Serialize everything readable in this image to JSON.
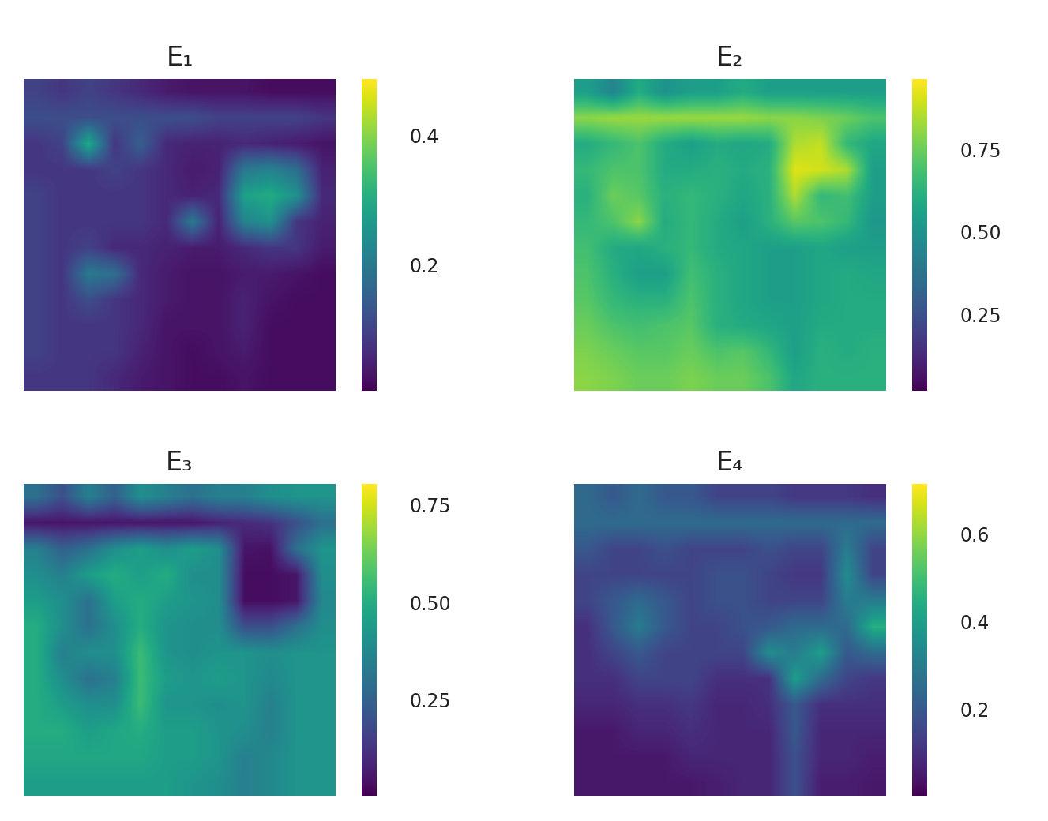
{
  "chart_data": [
    {
      "type": "heatmap",
      "title": "E₁",
      "tick_labels": false,
      "colorbar_range": [
        0.004,
        0.488
      ],
      "colorbar_ticks": [
        0.2,
        0.4
      ],
      "cells": [
        [
          0.1,
          0.08,
          0.1,
          0.08,
          0.06,
          0.04,
          0.03,
          0.03,
          0.03,
          0.02,
          0.02,
          0.02
        ],
        [
          0.12,
          0.12,
          0.12,
          0.12,
          0.12,
          0.12,
          0.12,
          0.1,
          0.1,
          0.1,
          0.1,
          0.08
        ],
        [
          0.08,
          0.1,
          0.3,
          0.08,
          0.15,
          0.06,
          0.05,
          0.05,
          0.06,
          0.05,
          0.04,
          0.03
        ],
        [
          0.08,
          0.08,
          0.08,
          0.1,
          0.08,
          0.06,
          0.04,
          0.05,
          0.2,
          0.22,
          0.18,
          0.05
        ],
        [
          0.1,
          0.08,
          0.08,
          0.08,
          0.08,
          0.06,
          0.05,
          0.06,
          0.28,
          0.3,
          0.25,
          0.06
        ],
        [
          0.1,
          0.08,
          0.08,
          0.08,
          0.08,
          0.06,
          0.2,
          0.05,
          0.22,
          0.25,
          0.08,
          0.05
        ],
        [
          0.1,
          0.08,
          0.1,
          0.06,
          0.06,
          0.05,
          0.04,
          0.04,
          0.06,
          0.08,
          0.08,
          0.04
        ],
        [
          0.1,
          0.08,
          0.2,
          0.18,
          0.06,
          0.04,
          0.03,
          0.03,
          0.04,
          0.04,
          0.03,
          0.02
        ],
        [
          0.1,
          0.08,
          0.12,
          0.08,
          0.06,
          0.04,
          0.03,
          0.03,
          0.05,
          0.03,
          0.02,
          0.02
        ],
        [
          0.1,
          0.08,
          0.08,
          0.08,
          0.06,
          0.03,
          0.03,
          0.03,
          0.05,
          0.02,
          0.02,
          0.02
        ],
        [
          0.1,
          0.08,
          0.08,
          0.08,
          0.05,
          0.03,
          0.02,
          0.03,
          0.04,
          0.02,
          0.02,
          0.02
        ],
        [
          0.08,
          0.08,
          0.08,
          0.06,
          0.04,
          0.03,
          0.02,
          0.02,
          0.03,
          0.02,
          0.02,
          0.02
        ]
      ]
    },
    {
      "type": "heatmap",
      "title": "E₂",
      "tick_labels": false,
      "colorbar_range": [
        0.017,
        0.966
      ],
      "colorbar_ticks": [
        0.25,
        {
          "value": 0.5,
          "label": "0.50"
        },
        0.75
      ],
      "cells": [
        [
          0.55,
          0.45,
          0.6,
          0.5,
          0.55,
          0.55,
          0.6,
          0.55,
          0.55,
          0.55,
          0.55,
          0.55
        ],
        [
          0.8,
          0.82,
          0.82,
          0.82,
          0.82,
          0.82,
          0.82,
          0.8,
          0.8,
          0.78,
          0.75,
          0.7
        ],
        [
          0.6,
          0.65,
          0.7,
          0.6,
          0.55,
          0.6,
          0.58,
          0.6,
          0.85,
          0.88,
          0.65,
          0.58
        ],
        [
          0.65,
          0.7,
          0.7,
          0.6,
          0.6,
          0.62,
          0.6,
          0.62,
          0.92,
          0.9,
          0.85,
          0.55
        ],
        [
          0.62,
          0.75,
          0.72,
          0.62,
          0.65,
          0.62,
          0.58,
          0.62,
          0.85,
          0.65,
          0.68,
          0.55
        ],
        [
          0.65,
          0.7,
          0.8,
          0.6,
          0.65,
          0.6,
          0.55,
          0.62,
          0.72,
          0.7,
          0.65,
          0.52
        ],
        [
          0.68,
          0.6,
          0.58,
          0.62,
          0.65,
          0.6,
          0.58,
          0.55,
          0.55,
          0.58,
          0.55,
          0.55
        ],
        [
          0.7,
          0.62,
          0.55,
          0.55,
          0.68,
          0.62,
          0.58,
          0.55,
          0.55,
          0.58,
          0.6,
          0.58
        ],
        [
          0.72,
          0.65,
          0.62,
          0.62,
          0.7,
          0.62,
          0.58,
          0.55,
          0.55,
          0.58,
          0.6,
          0.6
        ],
        [
          0.75,
          0.7,
          0.68,
          0.7,
          0.72,
          0.62,
          0.6,
          0.58,
          0.55,
          0.6,
          0.6,
          0.6
        ],
        [
          0.78,
          0.75,
          0.72,
          0.72,
          0.75,
          0.7,
          0.72,
          0.65,
          0.55,
          0.62,
          0.6,
          0.62
        ],
        [
          0.8,
          0.78,
          0.75,
          0.75,
          0.78,
          0.75,
          0.75,
          0.7,
          0.58,
          0.62,
          0.62,
          0.62
        ]
      ]
    },
    {
      "type": "heatmap",
      "title": "E₃",
      "tick_labels": false,
      "colorbar_range": [
        0.004,
        0.804
      ],
      "colorbar_ticks": [
        0.25,
        {
          "value": 0.5,
          "label": "0.50"
        },
        0.75
      ],
      "cells": [
        [
          0.3,
          0.2,
          0.35,
          0.25,
          0.4,
          0.35,
          0.3,
          0.35,
          0.35,
          0.4,
          0.42,
          0.42
        ],
        [
          0.05,
          0.05,
          0.05,
          0.05,
          0.05,
          0.05,
          0.05,
          0.08,
          0.1,
          0.12,
          0.2,
          0.3
        ],
        [
          0.35,
          0.25,
          0.3,
          0.4,
          0.45,
          0.4,
          0.45,
          0.4,
          0.05,
          0.04,
          0.3,
          0.42
        ],
        [
          0.4,
          0.35,
          0.45,
          0.5,
          0.45,
          0.5,
          0.4,
          0.4,
          0.03,
          0.03,
          0.05,
          0.4
        ],
        [
          0.45,
          0.4,
          0.3,
          0.45,
          0.5,
          0.45,
          0.42,
          0.4,
          0.03,
          0.03,
          0.05,
          0.38
        ],
        [
          0.5,
          0.4,
          0.3,
          0.4,
          0.5,
          0.42,
          0.4,
          0.4,
          0.2,
          0.2,
          0.3,
          0.4
        ],
        [
          0.5,
          0.35,
          0.4,
          0.4,
          0.55,
          0.42,
          0.4,
          0.42,
          0.42,
          0.4,
          0.42,
          0.42
        ],
        [
          0.5,
          0.4,
          0.3,
          0.35,
          0.55,
          0.45,
          0.42,
          0.45,
          0.42,
          0.38,
          0.42,
          0.42
        ],
        [
          0.5,
          0.45,
          0.4,
          0.4,
          0.55,
          0.42,
          0.42,
          0.4,
          0.42,
          0.35,
          0.42,
          0.42
        ],
        [
          0.5,
          0.5,
          0.45,
          0.48,
          0.5,
          0.45,
          0.45,
          0.42,
          0.4,
          0.35,
          0.42,
          0.42
        ],
        [
          0.48,
          0.48,
          0.48,
          0.48,
          0.48,
          0.45,
          0.45,
          0.42,
          0.35,
          0.38,
          0.42,
          0.42
        ],
        [
          0.45,
          0.45,
          0.45,
          0.45,
          0.45,
          0.45,
          0.42,
          0.4,
          0.35,
          0.38,
          0.42,
          0.42
        ]
      ]
    },
    {
      "type": "heatmap",
      "title": "E₄",
      "tick_labels": false,
      "colorbar_range": [
        0.003,
        0.715
      ],
      "colorbar_ticks": [
        0.2,
        0.4,
        0.6
      ],
      "cells": [
        [
          0.25,
          0.2,
          0.25,
          0.2,
          0.2,
          0.15,
          0.15,
          0.15,
          0.12,
          0.12,
          0.12,
          0.1
        ],
        [
          0.25,
          0.25,
          0.25,
          0.25,
          0.25,
          0.25,
          0.25,
          0.25,
          0.25,
          0.25,
          0.25,
          0.25
        ],
        [
          0.2,
          0.15,
          0.15,
          0.18,
          0.15,
          0.15,
          0.15,
          0.18,
          0.15,
          0.15,
          0.3,
          0.15
        ],
        [
          0.15,
          0.15,
          0.15,
          0.15,
          0.15,
          0.18,
          0.18,
          0.15,
          0.12,
          0.12,
          0.35,
          0.15
        ],
        [
          0.15,
          0.2,
          0.25,
          0.2,
          0.15,
          0.18,
          0.18,
          0.15,
          0.15,
          0.15,
          0.3,
          0.3
        ],
        [
          0.1,
          0.2,
          0.3,
          0.2,
          0.15,
          0.15,
          0.18,
          0.2,
          0.25,
          0.25,
          0.25,
          0.45
        ],
        [
          0.1,
          0.15,
          0.2,
          0.15,
          0.15,
          0.15,
          0.15,
          0.35,
          0.3,
          0.4,
          0.2,
          0.25
        ],
        [
          0.1,
          0.1,
          0.15,
          0.15,
          0.15,
          0.1,
          0.1,
          0.1,
          0.4,
          0.25,
          0.15,
          0.12
        ],
        [
          0.08,
          0.08,
          0.1,
          0.1,
          0.12,
          0.08,
          0.08,
          0.1,
          0.2,
          0.1,
          0.1,
          0.1
        ],
        [
          0.05,
          0.05,
          0.08,
          0.08,
          0.1,
          0.08,
          0.08,
          0.08,
          0.2,
          0.08,
          0.08,
          0.08
        ],
        [
          0.05,
          0.05,
          0.05,
          0.05,
          0.08,
          0.08,
          0.08,
          0.08,
          0.18,
          0.08,
          0.08,
          0.06
        ],
        [
          0.05,
          0.05,
          0.05,
          0.05,
          0.05,
          0.06,
          0.08,
          0.08,
          0.18,
          0.06,
          0.06,
          0.05
        ]
      ]
    }
  ]
}
